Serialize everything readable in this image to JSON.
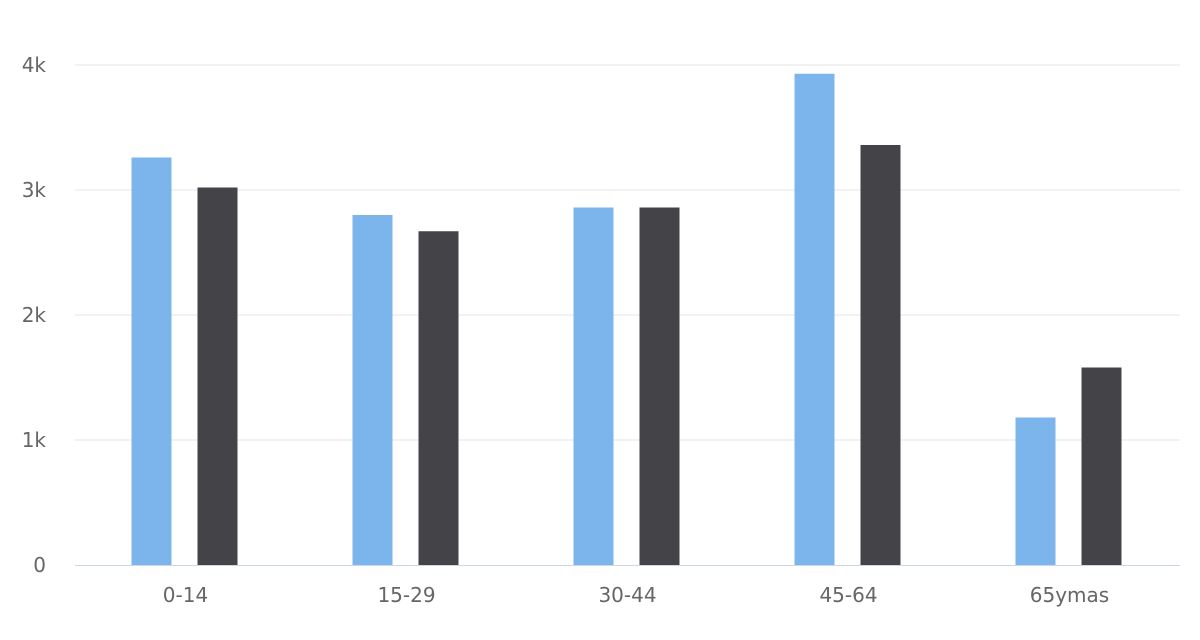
{
  "chart_data": {
    "type": "bar",
    "categories": [
      "0-14",
      "15-29",
      "30-44",
      "45-64",
      "65ymas"
    ],
    "series": [
      {
        "values": [
          3260,
          2800,
          2860,
          3930,
          1180
        ],
        "color": "#7cb5ec"
      },
      {
        "values": [
          3020,
          2670,
          2860,
          3360,
          1580
        ],
        "color": "#434348"
      }
    ],
    "y_ticks": [
      {
        "value": 0,
        "label": "0"
      },
      {
        "value": 1000,
        "label": "1k"
      },
      {
        "value": 2000,
        "label": "2k"
      },
      {
        "value": 3000,
        "label": "3k"
      },
      {
        "value": 4000,
        "label": "4k"
      }
    ],
    "ylim": [
      0,
      4000
    ],
    "grid": true,
    "legend": "none",
    "title": "",
    "xlabel": "",
    "ylabel": ""
  }
}
